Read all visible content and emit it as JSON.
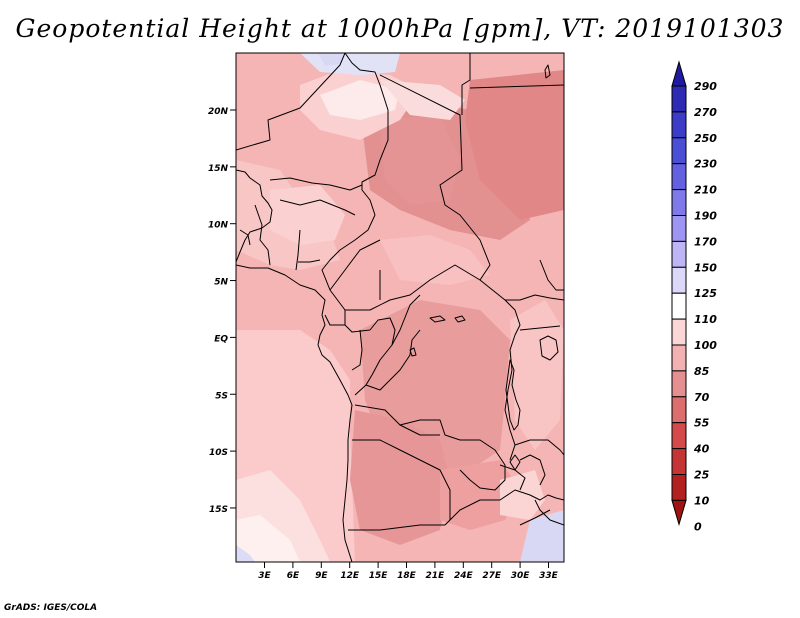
{
  "title": "Geopotential Height at 1000hPa [gpm], VT: 2019101303",
  "footer": "GrADS: IGES/COLA",
  "map": {
    "region": "Central Africa",
    "lon_range": [
      0,
      35
    ],
    "lat_range": [
      -20,
      24
    ],
    "lon_ticks": [
      "3E",
      "6E",
      "9E",
      "12E",
      "15E",
      "18E",
      "21E",
      "24E",
      "27E",
      "30E",
      "33E"
    ],
    "lat_ticks": [
      "20N",
      "15N",
      "10N",
      "5N",
      "EQ",
      "5S",
      "10S",
      "15S"
    ]
  },
  "colorbar": {
    "labels": [
      "290",
      "270",
      "250",
      "230",
      "210",
      "190",
      "170",
      "150",
      "125",
      "110",
      "100",
      "85",
      "70",
      "55",
      "40",
      "25",
      "10",
      "0"
    ],
    "colors": [
      "#1f1ba0",
      "#2d2ab4",
      "#3b3cc8",
      "#4a4fd6",
      "#6361e0",
      "#7f79ea",
      "#9d95f1",
      "#bcb6f6",
      "#dbd8fa",
      "#ffffff",
      "#fbd6d6",
      "#f2b2b2",
      "#e59090",
      "#dd6e6e",
      "#d44a4a",
      "#c63535",
      "#b32020",
      "#a01313"
    ]
  }
}
